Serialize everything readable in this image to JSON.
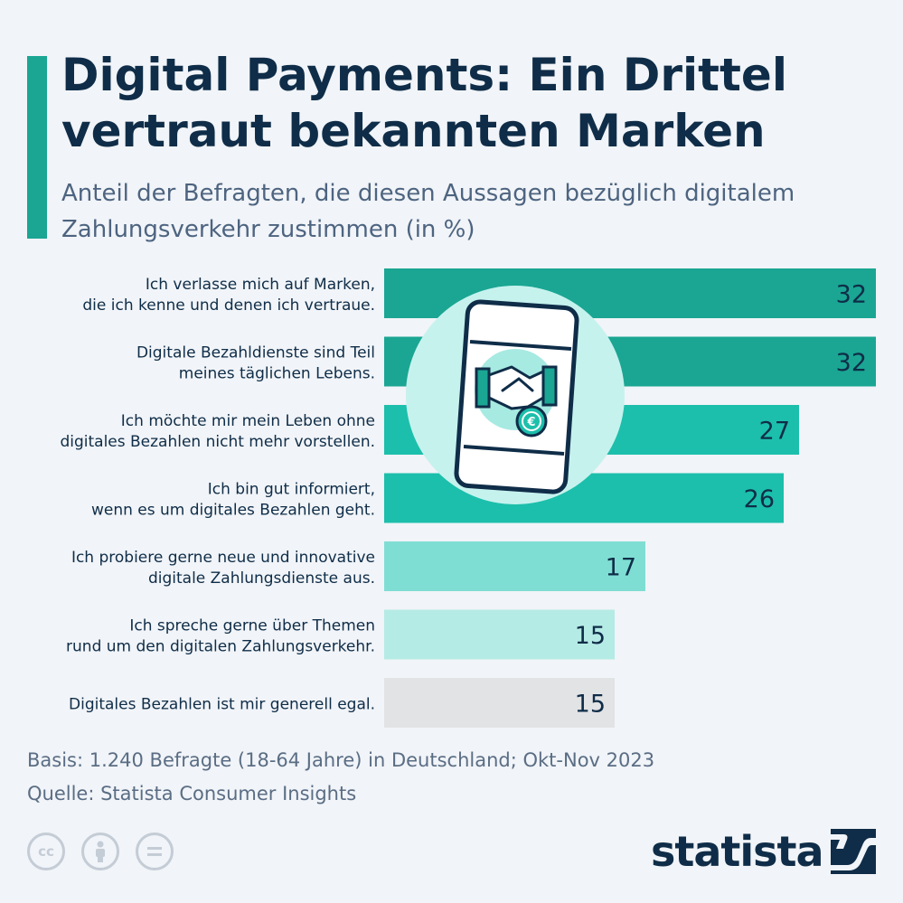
{
  "title": "Digital Payments: Ein Drittel vertraut bekannten Marken",
  "subtitle": "Anteil der Befragten, die diesen Aussagen bezüglich digitalem Zahlungsverkehr zustimmen (in %)",
  "chart_data": {
    "type": "bar",
    "orientation": "horizontal",
    "categories": [
      [
        "Ich verlasse mich auf Marken,",
        "die ich kenne und denen ich vertraue."
      ],
      [
        "Digitale Bezahldienste sind Teil",
        "meines täglichen Lebens."
      ],
      [
        "Ich möchte mir mein Leben ohne",
        "digitales Bezahlen nicht mehr vorstellen."
      ],
      [
        "Ich bin gut informiert,",
        "wenn es um digitales Bezahlen geht."
      ],
      [
        "Ich probiere gerne neue und innovative",
        "digitale Zahlungsdienste aus."
      ],
      [
        "Ich spreche gerne über Themen",
        "rund um den digitalen Zahlungsverkehr."
      ],
      [
        "Digitales Bezahlen ist mir generell egal."
      ]
    ],
    "values": [
      32,
      32,
      27,
      26,
      17,
      15,
      15
    ],
    "bar_colors": [
      "#1aa693",
      "#1aa693",
      "#1cbfab",
      "#1cbfab",
      "#7fded3",
      "#b5ebe5",
      "#e2e3e5"
    ],
    "xlim": [
      0,
      32
    ]
  },
  "footer": {
    "basis": "Basis: 1.240 Befragte (18-64 Jahre) in Deutschland; Okt-Nov 2023",
    "source": "Quelle: Statista Consumer Insights"
  },
  "license_icons": [
    "cc-icon",
    "by-icon",
    "nd-icon"
  ],
  "logo": "statista",
  "illustration": "smartphone-handshake-euro-icon"
}
